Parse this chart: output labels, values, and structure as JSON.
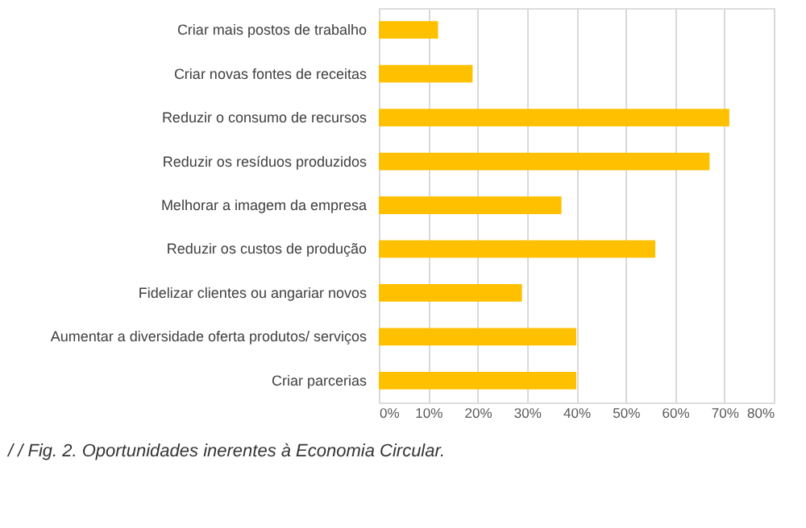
{
  "chart_data": {
    "type": "bar",
    "orientation": "horizontal",
    "categories": [
      "Criar mais postos de trabalho",
      "Criar novas fontes de receitas",
      "Reduzir o consumo de recursos",
      "Reduzir os resíduos produzidos",
      "Melhorar a imagem da empresa",
      "Reduzir os custos de produção",
      "Fidelizar clientes ou angariar novos",
      "Aumentar a diversidade oferta produtos/ serviços",
      "Criar parcerias"
    ],
    "values": [
      12,
      19,
      71,
      67,
      37,
      56,
      29,
      40,
      40
    ],
    "color": "#ffc000",
    "xlim": [
      0,
      80
    ],
    "xticks": [
      {
        "value": 0,
        "label": "0%"
      },
      {
        "value": 10,
        "label": "10%"
      },
      {
        "value": 20,
        "label": "20%"
      },
      {
        "value": 30,
        "label": "30%"
      },
      {
        "value": 40,
        "label": "40%"
      },
      {
        "value": 50,
        "label": "50%"
      },
      {
        "value": 60,
        "label": "60%"
      },
      {
        "value": 70,
        "label": "70%"
      },
      {
        "value": 80,
        "label": "80%"
      }
    ],
    "grid": "x",
    "annotations": [
      "/ / Fig. 2. Oportunidades inerentes à Economia Circular."
    ]
  }
}
